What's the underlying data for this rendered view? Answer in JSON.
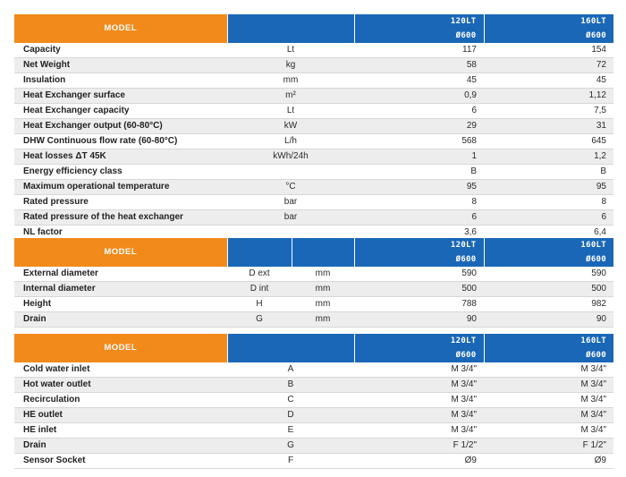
{
  "table1": {
    "model_label": "MODEL",
    "variants": [
      [
        "120LT",
        "Ø600"
      ],
      [
        "160LT",
        "Ø600"
      ]
    ],
    "rows": [
      {
        "label": "Capacity",
        "unit": "Lt",
        "v1": "117",
        "v2": "154"
      },
      {
        "label": "Net Weight",
        "unit": "kg",
        "v1": "58",
        "v2": "72"
      },
      {
        "label": "Insulation",
        "unit": "mm",
        "v1": "45",
        "v2": "45"
      },
      {
        "label": "Heat Exchanger surface",
        "unit": "m²",
        "v1": "0,9",
        "v2": "1,12"
      },
      {
        "label": "Heat Exchanger capacity",
        "unit": "Lt",
        "v1": "6",
        "v2": "7,5"
      },
      {
        "label": "Heat Exchanger output (60-80°C)",
        "unit": "kW",
        "v1": "29",
        "v2": "31"
      },
      {
        "label": "DHW Continuous flow rate (60-80°C)",
        "unit": "L/h",
        "v1": "568",
        "v2": "645"
      },
      {
        "label": "Heat losses ΔT 45K",
        "unit": "kWh/24h",
        "v1": "1",
        "v2": "1,2"
      },
      {
        "label": "Energy efficiency class",
        "unit": "",
        "v1": "B",
        "v2": "B"
      },
      {
        "label": "Maximum operational temperature",
        "unit": "°C",
        "v1": "95",
        "v2": "95"
      },
      {
        "label": "Rated pressure",
        "unit": "bar",
        "v1": "8",
        "v2": "8"
      },
      {
        "label": "Rated pressure of the heat exchanger",
        "unit": "bar",
        "v1": "6",
        "v2": "6"
      },
      {
        "label": "NL factor",
        "unit": "",
        "v1": "3,6",
        "v2": "6,4"
      }
    ]
  },
  "table2": {
    "model_label": "MODEL",
    "variants": [
      [
        "120LT",
        "Ø600"
      ],
      [
        "160LT",
        "Ø600"
      ]
    ],
    "rows": [
      {
        "label": "External diameter",
        "symbol": "D ext",
        "unit": "mm",
        "v1": "590",
        "v2": "590"
      },
      {
        "label": "Internal diameter",
        "symbol": "D int",
        "unit": "mm",
        "v1": "500",
        "v2": "500"
      },
      {
        "label": "Height",
        "symbol": "H",
        "unit": "mm",
        "v1": "788",
        "v2": "982"
      },
      {
        "label": "Drain",
        "symbol": "G",
        "unit": "mm",
        "v1": "90",
        "v2": "90"
      }
    ]
  },
  "table3": {
    "model_label": "MODEL",
    "variants": [
      [
        "120LT",
        "Ø600"
      ],
      [
        "160LT",
        "Ø600"
      ]
    ],
    "rows": [
      {
        "label": "Cold water inlet",
        "symbol": "A",
        "v1": "M 3/4\"",
        "v2": "M 3/4\""
      },
      {
        "label": "Hot water outlet",
        "symbol": "B",
        "v1": "M 3/4\"",
        "v2": "M 3/4\""
      },
      {
        "label": "Recirculation",
        "symbol": "C",
        "v1": "M 3/4\"",
        "v2": "M 3/4\""
      },
      {
        "label": "HE outlet",
        "symbol": "D",
        "v1": "M 3/4\"",
        "v2": "M 3/4\""
      },
      {
        "label": "HE inlet",
        "symbol": "E",
        "v1": "M 3/4\"",
        "v2": "M 3/4\""
      },
      {
        "label": "Drain",
        "symbol": "G",
        "v1": "F 1/2\"",
        "v2": "F 1/2\""
      },
      {
        "label": "Sensor Socket",
        "symbol": "F",
        "v1": "Ø9",
        "v2": "Ø9"
      }
    ]
  }
}
